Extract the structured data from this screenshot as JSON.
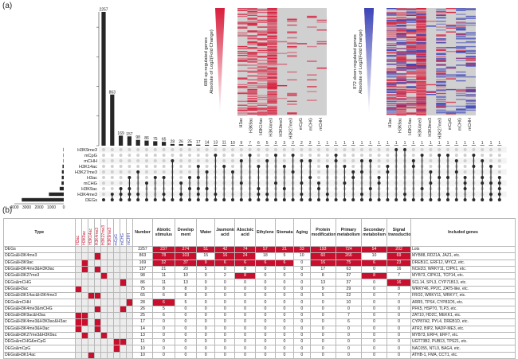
{
  "panel_a": {
    "label": "(a)",
    "bars": [
      {
        "label": "2257",
        "value": 2257
      },
      {
        "label": "863",
        "value": 863
      },
      {
        "label": "169",
        "value": 169
      },
      {
        "label": "157",
        "value": 157
      },
      {
        "label": "98",
        "value": 98
      },
      {
        "label": "86",
        "value": 86
      },
      {
        "label": "75",
        "value": 75
      },
      {
        "label": "65",
        "value": 65
      },
      {
        "label": "28",
        "value": 28
      },
      {
        "label": "26",
        "value": 26
      },
      {
        "label": "25",
        "value": 25
      },
      {
        "label": "17",
        "value": 17
      },
      {
        "label": "14",
        "value": 14
      },
      {
        "label": "13",
        "value": 13
      },
      {
        "label": "11",
        "value": 11
      },
      {
        "label": "10",
        "value": 10
      },
      {
        "label": "9",
        "value": 9
      },
      {
        "label": "7",
        "value": 7
      },
      {
        "label": "6",
        "value": 6
      },
      {
        "label": "5",
        "value": 5
      },
      {
        "label": "3",
        "value": 3
      },
      {
        "label": "3",
        "value": 3
      },
      {
        "label": "2",
        "value": 2
      },
      {
        "label": "2",
        "value": 2
      },
      {
        "label": "2",
        "value": 2
      },
      {
        "label": "1",
        "value": 1
      },
      {
        "label": "1",
        "value": 1
      },
      {
        "label": "1",
        "value": 1
      },
      {
        "label": "1",
        "value": 1
      },
      {
        "label": "1",
        "value": 1
      },
      {
        "label": "1",
        "value": 1
      },
      {
        "label": "1",
        "value": 1
      },
      {
        "label": "1",
        "value": 1
      },
      {
        "label": "1",
        "value": 1
      },
      {
        "label": "1",
        "value": 1
      },
      {
        "label": "1",
        "value": 1
      },
      {
        "label": "1",
        "value": 1
      },
      {
        "label": "1",
        "value": 1
      },
      {
        "label": "1",
        "value": 1
      },
      {
        "label": "1",
        "value": 1
      },
      {
        "label": "1",
        "value": 1
      },
      {
        "label": "1",
        "value": 1
      },
      {
        "label": "1",
        "value": 1
      },
      {
        "label": "1",
        "value": 1
      },
      {
        "label": "1",
        "value": 1
      },
      {
        "label": "1",
        "value": 1
      },
      {
        "label": "1",
        "value": 1
      }
    ],
    "set_names": [
      "H3K9me3",
      "mCpG",
      "mCHH",
      "H3K14ac",
      "H3K27me3",
      "H3ac",
      "mCHG",
      "H3K9ac",
      "H3K4me3",
      "DEGs"
    ],
    "set_sizes": [
      2,
      6,
      12,
      100,
      150,
      160,
      180,
      330,
      1200,
      3400
    ],
    "size_axis": {
      "title": "Size",
      "ticks": [
        "4000",
        "3000",
        "2000",
        "1000",
        "0"
      ]
    },
    "membership": [
      [
        9
      ],
      [
        9,
        8
      ],
      [
        9,
        8,
        7
      ],
      [
        9,
        8,
        7,
        5
      ],
      [
        9,
        8,
        4
      ],
      [
        9,
        6
      ],
      [
        9,
        5
      ],
      [
        9,
        8,
        5
      ],
      [
        9,
        2
      ],
      [
        9,
        8,
        6
      ],
      [
        9,
        7,
        5
      ],
      [
        9,
        8,
        7,
        5,
        3
      ],
      [
        9,
        7,
        4
      ],
      [
        9,
        8,
        1
      ],
      [
        9,
        3
      ],
      [
        9,
        4
      ],
      [
        9,
        6,
        2
      ],
      [
        9,
        1
      ],
      [
        9,
        8,
        7,
        3
      ],
      [
        9,
        8,
        2
      ],
      [
        9,
        6,
        1
      ],
      [
        9,
        7,
        3
      ],
      [
        9,
        4,
        1
      ],
      [
        9,
        8,
        6,
        2
      ],
      [
        9,
        5,
        2
      ],
      [
        9,
        7,
        6
      ],
      [
        9,
        8,
        3
      ],
      [
        9,
        2,
        1
      ],
      [
        9,
        6,
        3
      ],
      [
        9,
        5,
        4
      ],
      [
        9,
        8,
        4,
        2
      ],
      [
        9,
        7,
        2
      ],
      [
        9,
        6,
        5
      ],
      [
        9,
        4,
        3
      ],
      [
        9,
        0
      ],
      [
        9,
        8,
        0
      ],
      [
        9,
        3,
        2
      ],
      [
        9,
        7,
        1
      ],
      [
        9,
        6,
        4
      ],
      [
        9,
        5,
        1
      ],
      [
        9,
        8,
        5,
        1
      ],
      [
        9,
        4,
        2
      ],
      [
        9,
        7,
        6,
        5
      ],
      [
        9,
        3,
        1
      ],
      [
        9,
        6,
        5,
        2
      ],
      [
        9,
        8,
        6,
        3
      ],
      [
        9,
        8,
        7,
        6,
        5
      ]
    ],
    "heatmap_up": {
      "ylabel1": "688 up-regulated genes",
      "ylabel2": "Absolute of Log2(Fold Change)",
      "columns": [
        "H3ac",
        "H3K9ac",
        "H3K14ac",
        "H3K4me3",
        "H3K9me3",
        "H3K27me3",
        "mCpG",
        "mCHG",
        "mCHH"
      ],
      "color": "#d81e3c"
    },
    "heatmap_down": {
      "ylabel1": "872 down-regulated genes",
      "ylabel2": "Absolute of Log2(Fold Change)",
      "columns": [
        "H3ac",
        "H3K9ac",
        "H3K14ac",
        "H3K4me3",
        "H3K9me3",
        "H3K27me3",
        "mCpG",
        "mCHG",
        "mCHH"
      ],
      "color": "#3a44b8"
    }
  },
  "panel_b": {
    "label": "(b)",
    "type_header": "Type",
    "mark_headers": [
      "H3ac",
      "H3K9ac",
      "H3K14ac",
      "H3K4me3",
      "H3K27me3",
      "H3K9me3",
      "mCpG",
      "mCHG",
      "mCHH"
    ],
    "headers": [
      "Number",
      "Abiotic stimulus",
      "Develop ment",
      "Water",
      "Jasmonic acid",
      "Abscisic acid",
      "Ethylene",
      "Stomata",
      "Aging",
      "Protein modification",
      "Primary metabolism",
      "Secondary metabolism",
      "Signal transduction",
      "Included genes"
    ],
    "rows": [
      {
        "type": "DEGs",
        "marks": [
          0,
          0,
          0,
          0,
          0,
          0,
          0,
          0,
          0
        ],
        "values": [
          "2257",
          "237",
          "274",
          "51",
          "42",
          "74",
          "57",
          "21",
          "33",
          "193",
          "724",
          "54",
          "202"
        ],
        "hl": [
          1,
          1,
          1,
          1,
          1,
          1,
          1,
          1,
          1,
          1,
          1,
          1
        ],
        "genes": "Lots"
      },
      {
        "type": "DEGs&H3K4me3",
        "marks": [
          0,
          0,
          0,
          1,
          0,
          0,
          0,
          0,
          0
        ],
        "values": [
          "863",
          "78",
          "103",
          "15",
          "16",
          "24",
          "18",
          "5",
          "10",
          "60",
          "266",
          "10",
          "69"
        ],
        "hl": [
          1,
          1,
          0,
          1,
          1,
          0,
          0,
          0,
          1,
          1,
          0,
          1
        ],
        "genes": "MYB88, RD21A, JAZ1, etc."
      },
      {
        "type": "DEGs&H3K9ac",
        "marks": [
          0,
          1,
          0,
          0,
          0,
          0,
          0,
          0,
          0
        ],
        "values": [
          "169",
          "32",
          "37",
          "9",
          "6",
          "6",
          "6",
          "6",
          "0",
          "16",
          "75",
          "6",
          "23"
        ],
        "hl": [
          1,
          1,
          1,
          1,
          1,
          1,
          1,
          0,
          1,
          1,
          1,
          1
        ],
        "genes": "DREB1C, ERF12, MYC2, etc."
      },
      {
        "type": "DEGs&H3K4me3&H3K9ac",
        "marks": [
          0,
          1,
          0,
          1,
          0,
          0,
          0,
          0,
          0
        ],
        "values": [
          "157",
          "21",
          "20",
          "5",
          "0",
          "8",
          "0",
          "0",
          "0",
          "17",
          "63",
          "0",
          "16"
        ],
        "hl": [
          0,
          0,
          0,
          0,
          0,
          0,
          0,
          0,
          0,
          0,
          0,
          0
        ],
        "genes": "NCED3, WRKY11, CIPK1, etc."
      },
      {
        "type": "DEGs&H3K27me3",
        "marks": [
          0,
          0,
          0,
          0,
          1,
          0,
          0,
          0,
          0
        ],
        "values": [
          "98",
          "11",
          "10",
          "0",
          "2",
          "8",
          "0",
          "0",
          "0",
          "8",
          "37",
          "8",
          "7"
        ],
        "hl": [
          0,
          0,
          0,
          0,
          1,
          0,
          0,
          0,
          0,
          0,
          1,
          0
        ],
        "genes": "MYB73, CIPK11, TCP14, etc."
      },
      {
        "type": "DEGs&mCHG",
        "marks": [
          0,
          0,
          0,
          0,
          0,
          0,
          0,
          1,
          0
        ],
        "values": [
          "86",
          "11",
          "13",
          "0",
          "0",
          "0",
          "0",
          "0",
          "0",
          "13",
          "37",
          "0",
          "16"
        ],
        "hl": [
          0,
          0,
          0,
          0,
          0,
          0,
          0,
          0,
          0,
          0,
          0,
          1
        ],
        "genes": "SCL14, SPL3, CYP71B13, etc."
      },
      {
        "type": "DEGs&H3ac",
        "marks": [
          1,
          0,
          0,
          0,
          0,
          0,
          0,
          0,
          0
        ],
        "values": [
          "75",
          "8",
          "8",
          "0",
          "0",
          "0",
          "0",
          "0",
          "0",
          "9",
          "29",
          "0",
          "8"
        ],
        "hl": [
          0,
          0,
          0,
          0,
          0,
          0,
          0,
          0,
          0,
          0,
          0,
          0
        ],
        "genes": "WRKY46, PP2C, ZAT5-like, etc."
      },
      {
        "type": "DEGs&H3K14ac&H3K4me3",
        "marks": [
          0,
          0,
          1,
          1,
          0,
          0,
          0,
          0,
          0
        ],
        "values": [
          "65",
          "6",
          "8",
          "0",
          "0",
          "0",
          "0",
          "0",
          "0",
          "5",
          "22",
          "0",
          "7"
        ],
        "hl": [
          0,
          0,
          0,
          0,
          0,
          0,
          0,
          0,
          0,
          0,
          0,
          0
        ],
        "genes": "FRO2, WRKY11, WRKY7, etc."
      },
      {
        "type": "DEGs&mCHH",
        "marks": [
          0,
          0,
          0,
          0,
          0,
          0,
          0,
          0,
          1
        ],
        "values": [
          "28",
          "6",
          "5",
          "0",
          "0",
          "0",
          "0",
          "0",
          "0",
          "0",
          "10",
          "0",
          "0"
        ],
        "hl": [
          1,
          0,
          0,
          0,
          0,
          0,
          0,
          0,
          0,
          0,
          0,
          0
        ],
        "genes": "ARR5, TPS4, CYP81D5, etc."
      },
      {
        "type": "DEGs&H3K4me3&mCHG",
        "marks": [
          0,
          0,
          0,
          1,
          0,
          0,
          0,
          1,
          0
        ],
        "values": [
          "26",
          "5",
          "0",
          "0",
          "0",
          "0",
          "0",
          "0",
          "0",
          "0",
          "0",
          "0",
          "0"
        ],
        "hl": [
          0,
          0,
          0,
          0,
          0,
          0,
          0,
          0,
          0,
          0,
          0,
          0
        ],
        "genes": "PFK5, HSP70, TLP3, etc."
      },
      {
        "type": "DEGs&H3K9ac&H3ac",
        "marks": [
          1,
          1,
          0,
          0,
          0,
          0,
          0,
          0,
          0
        ],
        "values": [
          "25",
          "6",
          "0",
          "0",
          "0",
          "0",
          "0",
          "0",
          "0",
          "0",
          "7",
          "0",
          "0"
        ],
        "hl": [
          0,
          0,
          0,
          0,
          0,
          0,
          0,
          0,
          0,
          0,
          0,
          0
        ],
        "genes": "ZAT10, HD2C, MEKK1, etc."
      },
      {
        "type": "DEGs&H3K4me3&H3K9ac&H3ac",
        "marks": [
          1,
          1,
          0,
          1,
          0,
          0,
          0,
          0,
          0
        ],
        "values": [
          "17",
          "0",
          "0",
          "0",
          "0",
          "0",
          "0",
          "0",
          "0",
          "0",
          "6",
          "0",
          "0"
        ],
        "hl": [
          0,
          0,
          0,
          0,
          0,
          0,
          0,
          0,
          0,
          0,
          0,
          0
        ],
        "genes": "CYP87A2, PYL4, DREB1D, etc."
      },
      {
        "type": "DEGs&H3K4me3&H3ac",
        "marks": [
          1,
          0,
          0,
          1,
          0,
          0,
          0,
          0,
          0
        ],
        "values": [
          "14",
          "0",
          "0",
          "0",
          "0",
          "0",
          "0",
          "0",
          "0",
          "0",
          "0",
          "0",
          "0"
        ],
        "hl": [
          0,
          0,
          0,
          0,
          0,
          0,
          0,
          0,
          0,
          0,
          0,
          0
        ],
        "genes": "ATR2, BIP2, NADP-ME3, etc."
      },
      {
        "type": "DEGs&H3K27me3&H3K9ac",
        "marks": [
          0,
          1,
          0,
          0,
          1,
          0,
          0,
          0,
          0
        ],
        "values": [
          "13",
          "0",
          "0",
          "0",
          "0",
          "0",
          "0",
          "0",
          "0",
          "0",
          "0",
          "0",
          "0"
        ],
        "hl": [
          0,
          0,
          0,
          0,
          0,
          0,
          0,
          0,
          0,
          0,
          0,
          0
        ],
        "genes": "MYB73, ERF4, ERF7, etc."
      },
      {
        "type": "DEGs&mCHG&mCpG",
        "marks": [
          0,
          0,
          0,
          0,
          0,
          0,
          1,
          1,
          0
        ],
        "values": [
          "11",
          "0",
          "0",
          "0",
          "0",
          "0",
          "0",
          "0",
          "0",
          "0",
          "0",
          "0",
          "0"
        ],
        "hl": [
          0,
          0,
          0,
          0,
          0,
          0,
          0,
          0,
          0,
          0,
          0,
          0
        ],
        "genes": "UGT73B2, PUB13, TPS21, etc."
      },
      {
        "type": "DEGs&mCpG",
        "marks": [
          0,
          0,
          0,
          0,
          0,
          0,
          1,
          0,
          0
        ],
        "values": [
          "10",
          "0",
          "0",
          "0",
          "0",
          "0",
          "0",
          "0",
          "0",
          "0",
          "0",
          "0",
          "0"
        ],
        "hl": [
          0,
          0,
          0,
          0,
          0,
          0,
          0,
          0,
          0,
          0,
          0,
          0
        ],
        "genes": "NAC055, NTL9, BAG4, etc."
      },
      {
        "type": "DEGs&H3K14ac",
        "marks": [
          0,
          0,
          1,
          0,
          0,
          0,
          0,
          0,
          0
        ],
        "values": [
          "10",
          "0",
          "0",
          "0",
          "0",
          "0",
          "0",
          "0",
          "0",
          "0",
          "0",
          "0",
          "0"
        ],
        "hl": [
          0,
          0,
          0,
          0,
          0,
          0,
          0,
          0,
          0,
          0,
          0,
          0
        ],
        "genes": "ATHB-1, FMA, CCT1, etc."
      }
    ]
  }
}
